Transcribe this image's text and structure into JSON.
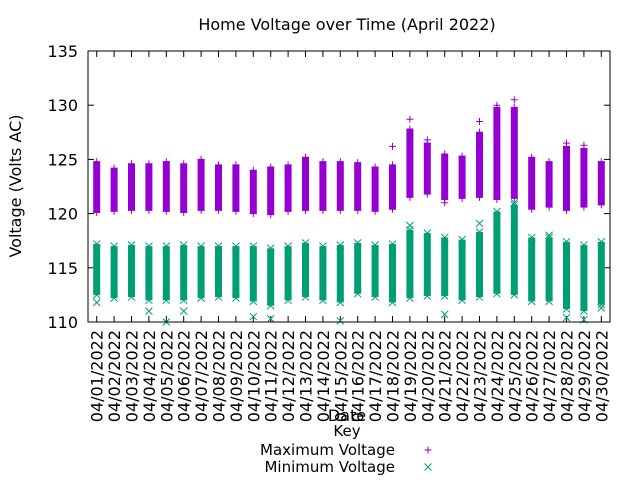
{
  "chart_data": {
    "type": "scatter",
    "title": "Home Voltage over Time (April 2022)",
    "xlabel": "Date",
    "ylabel": "Voltage (Volts AC)",
    "ylim": [
      110,
      135
    ],
    "yticks": [
      110,
      115,
      120,
      125,
      130,
      135
    ],
    "categories": [
      "04/01/2022",
      "04/02/2022",
      "04/03/2022",
      "04/04/2022",
      "04/05/2022",
      "04/06/2022",
      "04/07/2022",
      "04/08/2022",
      "04/09/2022",
      "04/10/2022",
      "04/11/2022",
      "04/12/2022",
      "04/13/2022",
      "04/14/2022",
      "04/15/2022",
      "04/16/2022",
      "04/17/2022",
      "04/18/2022",
      "04/19/2022",
      "04/20/2022",
      "04/21/2022",
      "04/22/2022",
      "04/23/2022",
      "04/24/2022",
      "04/25/2022",
      "04/26/2022",
      "04/27/2022",
      "04/28/2022",
      "04/29/2022",
      "04/30/2022"
    ],
    "legend": {
      "title": "Key",
      "placement": "bottom"
    },
    "series": [
      {
        "name": "Maximum Voltage",
        "marker": "plus",
        "color": "#9400d3",
        "ranges": [
          [
            120.1,
            124.8
          ],
          [
            120.2,
            124.2
          ],
          [
            120.3,
            124.6
          ],
          [
            120.3,
            124.6
          ],
          [
            120.2,
            124.8
          ],
          [
            120.1,
            124.6
          ],
          [
            120.3,
            125.0
          ],
          [
            120.3,
            124.5
          ],
          [
            120.2,
            124.5
          ],
          [
            120.0,
            124.0
          ],
          [
            119.9,
            124.3
          ],
          [
            120.2,
            124.5
          ],
          [
            120.3,
            125.2
          ],
          [
            120.3,
            124.8
          ],
          [
            120.3,
            124.8
          ],
          [
            120.3,
            124.7
          ],
          [
            120.2,
            124.3
          ],
          [
            120.4,
            124.5
          ],
          [
            121.5,
            127.8
          ],
          [
            121.8,
            126.5
          ],
          [
            121.3,
            125.5
          ],
          [
            121.4,
            125.3
          ],
          [
            121.5,
            127.5
          ],
          [
            121.3,
            129.8
          ],
          [
            121.4,
            129.8
          ],
          [
            120.4,
            125.2
          ],
          [
            120.6,
            124.8
          ],
          [
            120.3,
            126.2
          ],
          [
            120.6,
            126.0
          ],
          [
            120.8,
            124.8
          ]
        ],
        "outliers": [
          [
            "04/18/2022",
            126.2
          ],
          [
            "04/19/2022",
            128.7
          ],
          [
            "04/20/2022",
            126.8
          ],
          [
            "04/21/2022",
            121.0
          ],
          [
            "04/23/2022",
            128.5
          ],
          [
            "04/24/2022",
            130.0
          ],
          [
            "04/25/2022",
            130.5
          ],
          [
            "04/28/2022",
            126.5
          ],
          [
            "04/29/2022",
            126.3
          ]
        ]
      },
      {
        "name": "Minimum Voltage",
        "marker": "cross",
        "color": "#009e73",
        "ranges": [
          [
            112.5,
            117.2
          ],
          [
            112.2,
            117.0
          ],
          [
            112.3,
            117.1
          ],
          [
            112.0,
            117.0
          ],
          [
            112.0,
            117.0
          ],
          [
            112.0,
            117.1
          ],
          [
            112.2,
            117.0
          ],
          [
            112.3,
            117.0
          ],
          [
            112.2,
            117.0
          ],
          [
            111.9,
            117.0
          ],
          [
            111.5,
            116.8
          ],
          [
            112.0,
            117.0
          ],
          [
            112.3,
            117.3
          ],
          [
            112.0,
            117.0
          ],
          [
            111.8,
            117.1
          ],
          [
            112.6,
            117.3
          ],
          [
            112.3,
            117.1
          ],
          [
            111.8,
            117.2
          ],
          [
            112.2,
            118.5
          ],
          [
            112.4,
            118.2
          ],
          [
            112.4,
            117.8
          ],
          [
            112.0,
            117.6
          ],
          [
            112.3,
            118.3
          ],
          [
            112.6,
            120.2
          ],
          [
            112.5,
            120.8
          ],
          [
            111.9,
            117.8
          ],
          [
            111.9,
            117.8
          ],
          [
            111.2,
            117.4
          ],
          [
            111.0,
            117.1
          ],
          [
            111.6,
            117.4
          ]
        ],
        "outliers": [
          [
            "04/01/2022",
            111.8
          ],
          [
            "04/04/2022",
            111.0
          ],
          [
            "04/05/2022",
            110.0
          ],
          [
            "04/06/2022",
            111.0
          ],
          [
            "04/10/2022",
            110.5
          ],
          [
            "04/11/2022",
            110.3
          ],
          [
            "04/15/2022",
            110.1
          ],
          [
            "04/19/2022",
            118.9
          ],
          [
            "04/21/2022",
            110.7
          ],
          [
            "04/23/2022",
            119.1
          ],
          [
            "04/25/2022",
            121.0
          ],
          [
            "04/27/2022",
            118.0
          ],
          [
            "04/28/2022",
            110.4
          ],
          [
            "04/29/2022",
            110.2
          ],
          [
            "04/30/2022",
            111.3
          ]
        ]
      }
    ]
  }
}
